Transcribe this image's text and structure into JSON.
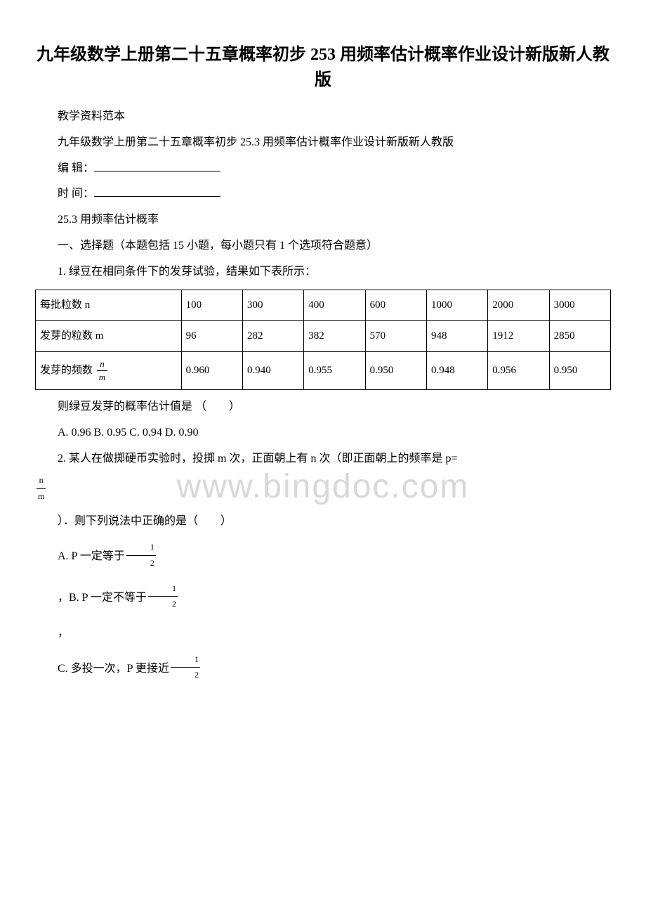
{
  "title": "九年级数学上册第二十五章概率初步 253 用频率估计概率作业设计新版新人教版",
  "subtitle_line1": "教学资料范本",
  "subtitle_line2": "九年级数学上册第二十五章概率初步 25.3 用频率估计概率作业设计新版新人教版",
  "editor_label": "编 辑：",
  "time_label": "时 间：",
  "section_title": "25.3 用频率估计概率",
  "section1_header": "一、选择题（本题包括 15 小题，每小题只有 1 个选项符合题意）",
  "q1_text": "1. 绿豆在相同条件下的发芽试验，结果如下表所示：",
  "table": {
    "row_headers": [
      "每批粒数 n",
      "发芽的粒数 m",
      "发芽的频数"
    ],
    "frac_n": "n",
    "frac_m": "m",
    "columns": [
      "100",
      "300",
      "400",
      "600",
      "1000",
      "2000",
      "3000"
    ],
    "row1": [
      "100",
      "300",
      "400",
      "600",
      "1000",
      "2000",
      "3000"
    ],
    "row2": [
      "96",
      "282",
      "382",
      "570",
      "948",
      "1912",
      "2850"
    ],
    "row3": [
      "0.960",
      "0.940",
      "0.955",
      "0.950",
      "0.948",
      "0.956",
      "0.950"
    ]
  },
  "q1_followup": "则绿豆发芽的概率估计值是 （　　）",
  "q1_options": "A. 0.96 B. 0.95 C. 0.94 D. 0.90",
  "q2_text": "2. 某人在做掷硬币实验时，投掷 m 次，正面朝上有 n 次（即正面朝上的频率是 p=",
  "q2_frac_n": "n",
  "q2_frac_m": "m",
  "q2_text2": "）．则下列说法中正确的是（　　）",
  "q2_optA_prefix": "A. P 一定等于",
  "q2_optB_prefix": "，B. P 一定不等于",
  "q2_optC_prefix": "C. 多投一次，P 更接近",
  "half_num": "1",
  "half_den": "2",
  "comma": "，",
  "watermark": "www.bingdoc.com",
  "colors": {
    "text": "#000000",
    "background": "#ffffff",
    "watermark": "#d8d8d8",
    "border": "#000000"
  },
  "fonts": {
    "body_family": "SimSun",
    "body_size": 16,
    "title_size": 24,
    "table_size": 15
  }
}
